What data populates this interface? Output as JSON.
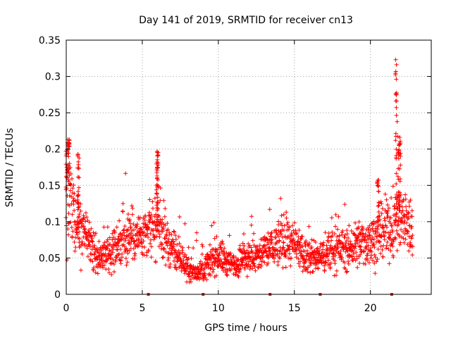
{
  "chart_data": {
    "type": "scatter",
    "title": "Day 141 of 2019, SRMTID for receiver cn13",
    "xlabel": "GPS time / hours",
    "ylabel": "SRMTID / TECUs",
    "xlim": [
      0,
      24
    ],
    "ylim": [
      0,
      0.35
    ],
    "xticks": [
      0,
      5,
      10,
      15,
      20
    ],
    "xtick_labels": [
      "0",
      "5",
      "10",
      "15",
      "20"
    ],
    "yticks": [
      0,
      0.05,
      0.1,
      0.15,
      0.2,
      0.25,
      0.3,
      0.35
    ],
    "ytick_labels": [
      "0",
      "0.05",
      "0.1",
      "0.15",
      "0.2",
      "0.25",
      "0.3",
      "0.35"
    ],
    "grid": true,
    "marker": "+",
    "series_color": "#ff0000",
    "x_axis_markers": [
      5.4,
      9.0,
      13.4,
      16.7,
      21.4
    ],
    "trend": [
      [
        0.05,
        0.16
      ],
      [
        0.3,
        0.13
      ],
      [
        0.6,
        0.09
      ],
      [
        1.0,
        0.085
      ],
      [
        1.5,
        0.07
      ],
      [
        2.0,
        0.05
      ],
      [
        2.5,
        0.055
      ],
      [
        3.0,
        0.06
      ],
      [
        3.5,
        0.07
      ],
      [
        4.0,
        0.08
      ],
      [
        4.5,
        0.085
      ],
      [
        5.0,
        0.075
      ],
      [
        5.5,
        0.085
      ],
      [
        6.0,
        0.095
      ],
      [
        6.5,
        0.075
      ],
      [
        7.0,
        0.06
      ],
      [
        7.5,
        0.05
      ],
      [
        8.0,
        0.035
      ],
      [
        8.5,
        0.03
      ],
      [
        9.0,
        0.035
      ],
      [
        9.5,
        0.045
      ],
      [
        10.0,
        0.055
      ],
      [
        10.5,
        0.045
      ],
      [
        11.0,
        0.04
      ],
      [
        11.5,
        0.045
      ],
      [
        12.0,
        0.055
      ],
      [
        12.5,
        0.05
      ],
      [
        13.0,
        0.06
      ],
      [
        13.5,
        0.065
      ],
      [
        14.0,
        0.07
      ],
      [
        14.5,
        0.075
      ],
      [
        15.0,
        0.065
      ],
      [
        15.5,
        0.055
      ],
      [
        16.0,
        0.05
      ],
      [
        16.5,
        0.05
      ],
      [
        17.0,
        0.055
      ],
      [
        17.5,
        0.06
      ],
      [
        18.0,
        0.065
      ],
      [
        18.5,
        0.06
      ],
      [
        19.0,
        0.065
      ],
      [
        19.5,
        0.07
      ],
      [
        20.0,
        0.075
      ],
      [
        20.5,
        0.08
      ],
      [
        21.0,
        0.085
      ],
      [
        21.5,
        0.09
      ],
      [
        22.0,
        0.11
      ],
      [
        22.5,
        0.095
      ],
      [
        22.8,
        0.085
      ]
    ],
    "bursts": [
      {
        "x": 0.1,
        "w": 0.25,
        "top": 0.215,
        "n": 40
      },
      {
        "x": 0.8,
        "w": 0.12,
        "top": 0.195,
        "n": 25
      },
      {
        "x": 6.0,
        "w": 0.12,
        "top": 0.2,
        "n": 40
      },
      {
        "x": 20.5,
        "w": 0.15,
        "top": 0.165,
        "n": 18
      },
      {
        "x": 21.7,
        "w": 0.12,
        "top": 0.33,
        "n": 30
      },
      {
        "x": 21.9,
        "w": 0.2,
        "top": 0.22,
        "n": 35
      }
    ]
  }
}
